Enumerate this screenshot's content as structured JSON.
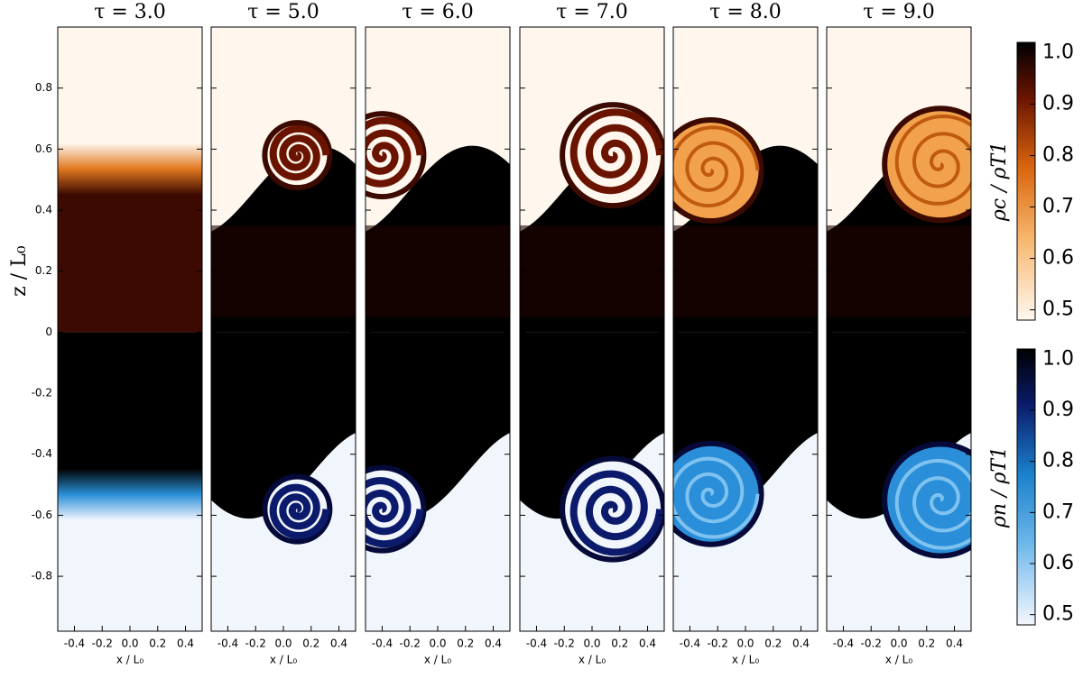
{
  "chart_data": [
    {
      "type": "heatmap",
      "title": "τ = 3.0",
      "xlabel": "x / L₀",
      "ylabel": "z / L₀",
      "xlim": [
        -0.52,
        0.52
      ],
      "ylim": [
        -0.98,
        1.0
      ],
      "xticks": [
        -0.4,
        -0.2,
        {
          "value": 0,
          "label": "0.0"
        },
        0.2,
        0.4
      ],
      "yticks": [
        0.8,
        0.6,
        0.4,
        0.2,
        0,
        -0.2,
        -0.4,
        -0.6,
        -0.8
      ]
    },
    {
      "type": "heatmap",
      "title": "τ = 5.0",
      "xlabel": "x / L₀",
      "xlim": [
        -0.52,
        0.52
      ],
      "ylim": [
        -0.98,
        1.0
      ],
      "xticks": [
        -0.4,
        -0.2,
        {
          "value": 0,
          "label": "0.0"
        },
        0.2,
        0.4
      ]
    },
    {
      "type": "heatmap",
      "title": "τ = 6.0",
      "xlabel": "x / L₀",
      "xlim": [
        -0.52,
        0.52
      ],
      "ylim": [
        -0.98,
        1.0
      ],
      "xticks": [
        -0.4,
        -0.2,
        {
          "value": 0,
          "label": "0.0"
        },
        0.2,
        0.4
      ]
    },
    {
      "type": "heatmap",
      "title": "τ = 7.0",
      "xlabel": "x / L₀",
      "xlim": [
        -0.52,
        0.52
      ],
      "ylim": [
        -0.98,
        1.0
      ],
      "xticks": [
        -0.4,
        -0.2,
        {
          "value": 0,
          "label": "0.0"
        },
        0.2,
        0.4
      ]
    },
    {
      "type": "heatmap",
      "title": "τ = 8.0",
      "xlabel": "x / L₀",
      "xlim": [
        -0.52,
        0.52
      ],
      "ylim": [
        -0.98,
        1.0
      ],
      "xticks": [
        -0.4,
        -0.2,
        {
          "value": 0,
          "label": "0.0"
        },
        0.2,
        0.4
      ]
    },
    {
      "type": "heatmap",
      "title": "τ = 9.0",
      "xlabel": "x / L₀",
      "xlim": [
        -0.52,
        0.52
      ],
      "ylim": [
        -0.98,
        1.0
      ],
      "xticks": [
        -0.4,
        -0.2,
        {
          "value": 0,
          "label": "0.0"
        },
        0.2,
        0.4
      ]
    },
    {
      "type": "colorbar",
      "label": "ρc / ρT1",
      "ylim": [
        0.48,
        1.02
      ],
      "yticks": [
        0.5,
        0.6,
        0.7,
        0.8,
        0.9,
        {
          "value": 1,
          "label": "1.0"
        }
      ]
    },
    {
      "type": "colorbar",
      "label": "ρn / ρT1",
      "ylim": [
        0.48,
        1.02
      ],
      "yticks": [
        0.5,
        0.6,
        0.7,
        0.8,
        0.9,
        {
          "value": 1,
          "label": "1.0"
        }
      ]
    }
  ]
}
